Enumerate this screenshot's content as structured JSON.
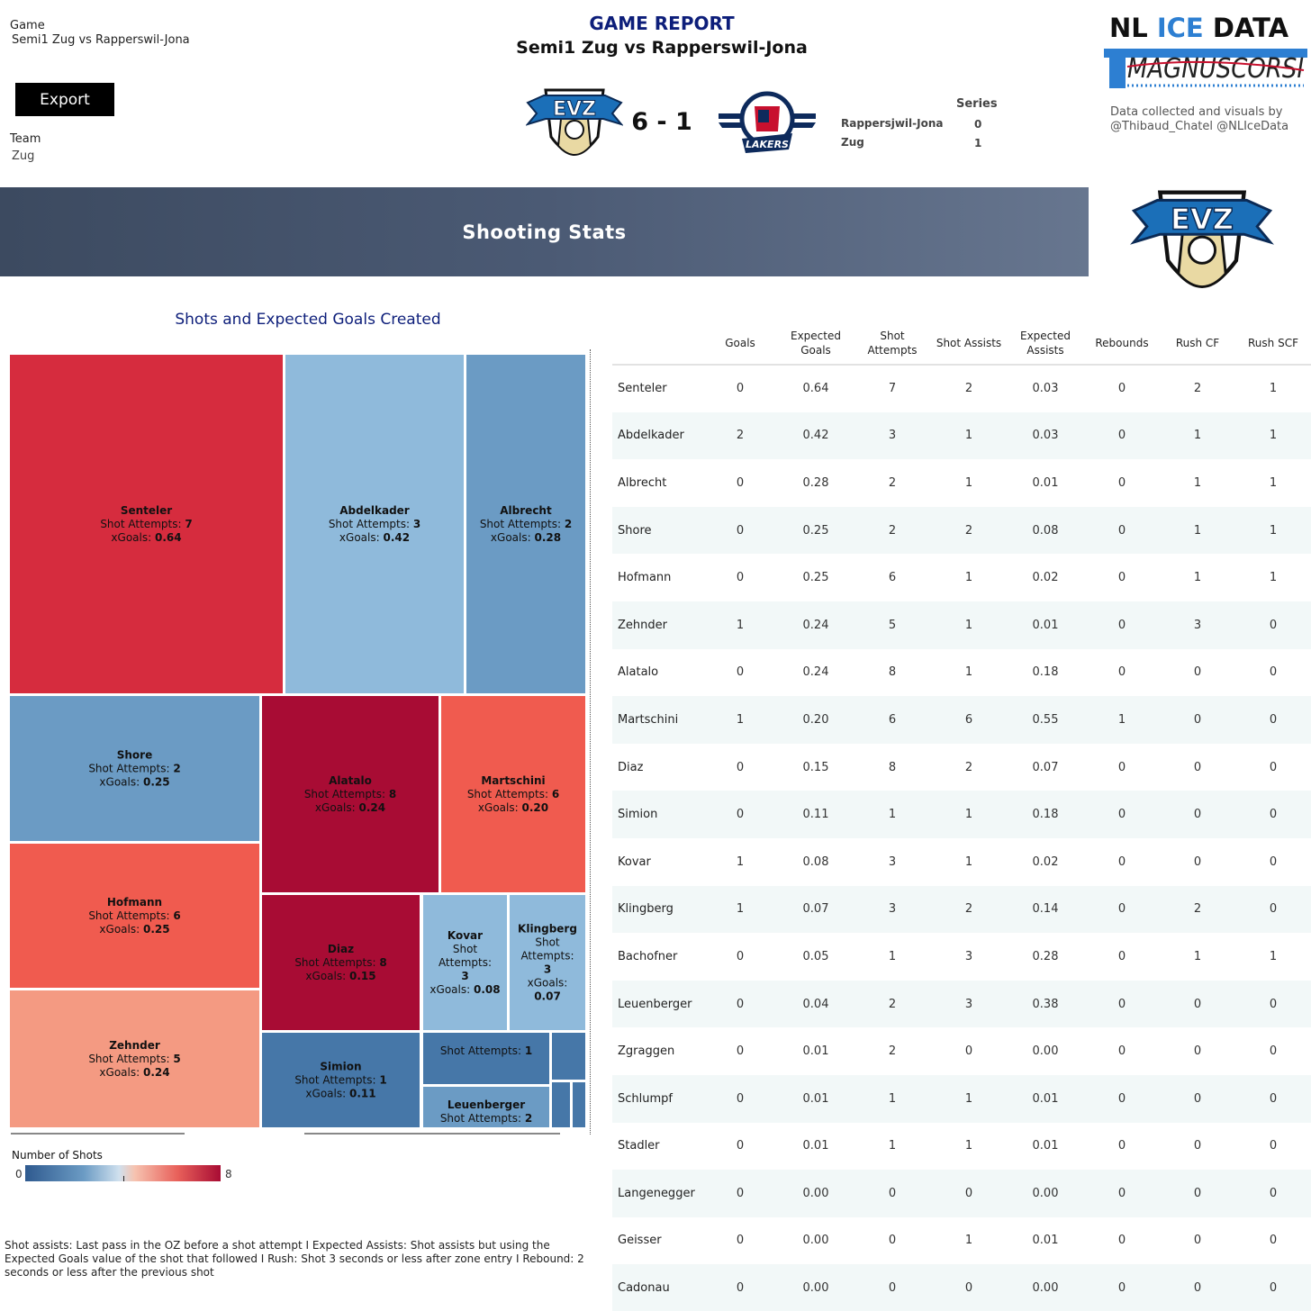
{
  "filters": {
    "game_label": "Game",
    "game_value": "Semi1 Zug vs Rapperswil-Jona",
    "export_label": "Export",
    "team_label": "Team",
    "team_value": "Zug"
  },
  "header": {
    "report_title": "GAME REPORT",
    "game_subtitle": "Semi1 Zug vs Rapperswil-Jona",
    "score": "6 - 1",
    "home_logo_text": "EVZ",
    "away_logo_text": "LAKERS",
    "series": {
      "title": "Series",
      "rows": [
        {
          "team": "Rappersjwil-Jona",
          "value": "0"
        },
        {
          "team": "Zug",
          "value": "1"
        }
      ]
    },
    "brand": {
      "nl": "NL",
      "ice": "ICE",
      "data": "DATA",
      "sub": "MAGNUSCORSI"
    },
    "credit": "Data collected and visuals by @Thibaud_Chatel @NLIceData"
  },
  "banner": {
    "title": "Shooting Stats"
  },
  "colors": {
    "navy_title": "#0d1e7a",
    "banner_start": "#3c4a60",
    "banner_end": "#67768f",
    "scale_low": "#2f5a8f",
    "scale_mid": "#cfe0ee",
    "scale_high": "#a80c34"
  },
  "chart_data": {
    "type": "treemap",
    "title": "Shots and Expected Goals Created",
    "size_metric": "xGoals",
    "color_metric": "Number of Shots",
    "color_range": [
      0,
      8
    ],
    "legend": {
      "title": "Number of Shots",
      "min": "0",
      "max": "8",
      "placement": "bottom-left"
    },
    "cells": [
      {
        "name": "Senteler",
        "shots": 7,
        "xgoals": 0.64,
        "labelled": true
      },
      {
        "name": "Abdelkader",
        "shots": 3,
        "xgoals": 0.42,
        "labelled": true
      },
      {
        "name": "Albrecht",
        "shots": 2,
        "xgoals": 0.28,
        "labelled": true
      },
      {
        "name": "Shore",
        "shots": 2,
        "xgoals": 0.25,
        "labelled": true
      },
      {
        "name": "Alatalo",
        "shots": 8,
        "xgoals": 0.24,
        "labelled": true
      },
      {
        "name": "Martschini",
        "shots": 6,
        "xgoals": 0.2,
        "labelled": true
      },
      {
        "name": "Hofmann",
        "shots": 6,
        "xgoals": 0.25,
        "labelled": true
      },
      {
        "name": "Diaz",
        "shots": 8,
        "xgoals": 0.15,
        "labelled": true
      },
      {
        "name": "Kovar",
        "shots": 3,
        "xgoals": 0.08,
        "labelled": true
      },
      {
        "name": "Klingberg",
        "shots": 3,
        "xgoals": 0.07,
        "labelled": true
      },
      {
        "name": "Zehnder",
        "shots": 5,
        "xgoals": 0.24,
        "labelled": true
      },
      {
        "name": "Simion",
        "shots": 1,
        "xgoals": 0.11,
        "labelled": true
      },
      {
        "name": "",
        "shots": 1,
        "xgoals": null,
        "labelled": true
      },
      {
        "name": "Leuenberger",
        "shots": 2,
        "xgoals": null,
        "labelled": true
      },
      {
        "name": "",
        "shots": 1,
        "xgoals": null,
        "labelled": false
      },
      {
        "name": "",
        "shots": 1,
        "xgoals": null,
        "labelled": false
      },
      {
        "name": "",
        "shots": 1,
        "xgoals": null,
        "labelled": false
      }
    ],
    "label_prefix_shots": "Shot Attempts: ",
    "label_prefix_xgoals": "xGoals: "
  },
  "table": {
    "columns": [
      "Goals",
      "Expected Goals",
      "Shot Attempts",
      "Shot Assists",
      "Expected Assists",
      "Rebounds",
      "Rush CF",
      "Rush SCF"
    ],
    "column_lines": [
      [
        "Goals"
      ],
      [
        "Expected",
        "Goals"
      ],
      [
        "Shot",
        "Attempts"
      ],
      [
        "Shot Assists"
      ],
      [
        "Expected",
        "Assists"
      ],
      [
        "Rebounds"
      ],
      [
        "Rush CF"
      ],
      [
        "Rush SCF"
      ]
    ],
    "rows": [
      {
        "player": "Senteler",
        "values": [
          "0",
          "0.64",
          "7",
          "2",
          "0.03",
          "0",
          "2",
          "1"
        ]
      },
      {
        "player": "Abdelkader",
        "values": [
          "2",
          "0.42",
          "3",
          "1",
          "0.03",
          "0",
          "1",
          "1"
        ]
      },
      {
        "player": "Albrecht",
        "values": [
          "0",
          "0.28",
          "2",
          "1",
          "0.01",
          "0",
          "1",
          "1"
        ]
      },
      {
        "player": "Shore",
        "values": [
          "0",
          "0.25",
          "2",
          "2",
          "0.08",
          "0",
          "1",
          "1"
        ]
      },
      {
        "player": "Hofmann",
        "values": [
          "0",
          "0.25",
          "6",
          "1",
          "0.02",
          "0",
          "1",
          "1"
        ]
      },
      {
        "player": "Zehnder",
        "values": [
          "1",
          "0.24",
          "5",
          "1",
          "0.01",
          "0",
          "3",
          "0"
        ]
      },
      {
        "player": "Alatalo",
        "values": [
          "0",
          "0.24",
          "8",
          "1",
          "0.18",
          "0",
          "0",
          "0"
        ]
      },
      {
        "player": "Martschini",
        "values": [
          "1",
          "0.20",
          "6",
          "6",
          "0.55",
          "1",
          "0",
          "0"
        ]
      },
      {
        "player": "Diaz",
        "values": [
          "0",
          "0.15",
          "8",
          "2",
          "0.07",
          "0",
          "0",
          "0"
        ]
      },
      {
        "player": "Simion",
        "values": [
          "0",
          "0.11",
          "1",
          "1",
          "0.18",
          "0",
          "0",
          "0"
        ]
      },
      {
        "player": "Kovar",
        "values": [
          "1",
          "0.08",
          "3",
          "1",
          "0.02",
          "0",
          "0",
          "0"
        ]
      },
      {
        "player": "Klingberg",
        "values": [
          "1",
          "0.07",
          "3",
          "2",
          "0.14",
          "0",
          "2",
          "0"
        ]
      },
      {
        "player": "Bachofner",
        "values": [
          "0",
          "0.05",
          "1",
          "3",
          "0.28",
          "0",
          "1",
          "1"
        ]
      },
      {
        "player": "Leuenberger",
        "values": [
          "0",
          "0.04",
          "2",
          "3",
          "0.38",
          "0",
          "0",
          "0"
        ]
      },
      {
        "player": "Zgraggen",
        "values": [
          "0",
          "0.01",
          "2",
          "0",
          "0.00",
          "0",
          "0",
          "0"
        ]
      },
      {
        "player": "Schlumpf",
        "values": [
          "0",
          "0.01",
          "1",
          "1",
          "0.01",
          "0",
          "0",
          "0"
        ]
      },
      {
        "player": "Stadler",
        "values": [
          "0",
          "0.01",
          "1",
          "1",
          "0.01",
          "0",
          "0",
          "0"
        ]
      },
      {
        "player": "Langenegger",
        "values": [
          "0",
          "0.00",
          "0",
          "0",
          "0.00",
          "0",
          "0",
          "0"
        ]
      },
      {
        "player": "Geisser",
        "values": [
          "0",
          "0.00",
          "0",
          "1",
          "0.01",
          "0",
          "0",
          "0"
        ]
      },
      {
        "player": "Cadonau",
        "values": [
          "0",
          "0.00",
          "0",
          "0",
          "0.00",
          "0",
          "0",
          "0"
        ]
      }
    ]
  },
  "footnote": "Shot assists: Last pass in the OZ before a shot attempt I Expected Assists: Shot assists but using the Expected Goals value of the shot that followed I Rush: Shot 3 seconds or less after zone entry I Rebound: 2 seconds or less after the previous shot"
}
